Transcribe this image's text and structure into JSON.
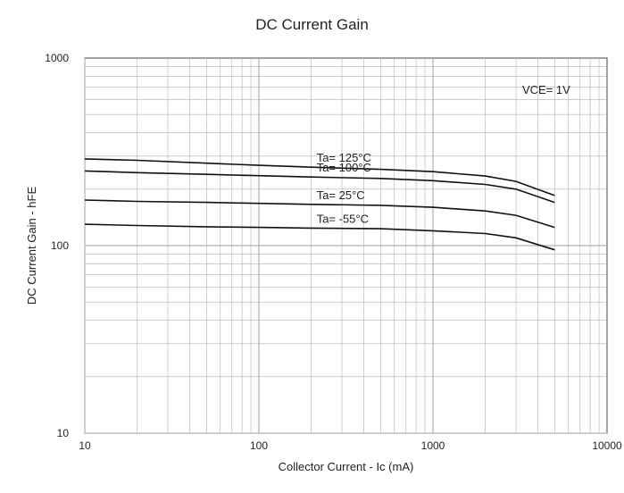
{
  "chart_data": {
    "type": "line",
    "title": "DC Current Gain",
    "xlabel": "Collector Current - Ic (mA)",
    "ylabel": "DC Current Gain - hFE",
    "xscale": "log",
    "yscale": "log",
    "xlim": [
      10,
      10000
    ],
    "ylim": [
      10,
      1000
    ],
    "x_ticks": [
      "10",
      "100",
      "1000",
      "10000"
    ],
    "y_ticks": [
      "1000",
      "100",
      "10"
    ],
    "grid": true,
    "condition": "VCE= 1V",
    "series": [
      {
        "name": "Ta= 125°C",
        "x": [
          10,
          20,
          50,
          100,
          200,
          500,
          1000,
          2000,
          3000,
          5000
        ],
        "y": [
          290,
          285,
          275,
          268,
          262,
          255,
          248,
          235,
          220,
          185
        ]
      },
      {
        "name": "Ta= 100°C",
        "x": [
          10,
          20,
          50,
          100,
          200,
          500,
          1000,
          2000,
          3000,
          5000
        ],
        "y": [
          250,
          245,
          240,
          236,
          232,
          228,
          222,
          212,
          200,
          170
        ]
      },
      {
        "name": "Ta= 25°C",
        "x": [
          10,
          20,
          50,
          100,
          200,
          500,
          1000,
          2000,
          3000,
          5000
        ],
        "y": [
          175,
          172,
          170,
          168,
          166,
          164,
          160,
          153,
          145,
          125
        ]
      },
      {
        "name": "Ta= -55°C",
        "x": [
          10,
          20,
          50,
          100,
          200,
          500,
          1000,
          2000,
          3000,
          5000
        ],
        "y": [
          130,
          128,
          126,
          125,
          124,
          123,
          120,
          116,
          110,
          95
        ]
      }
    ],
    "annotations": [
      "VCE= 1V"
    ]
  },
  "colors": {
    "curve": "#111111",
    "grid": "#b0b0b0",
    "frame": "#444444",
    "background": "#ffffff"
  }
}
